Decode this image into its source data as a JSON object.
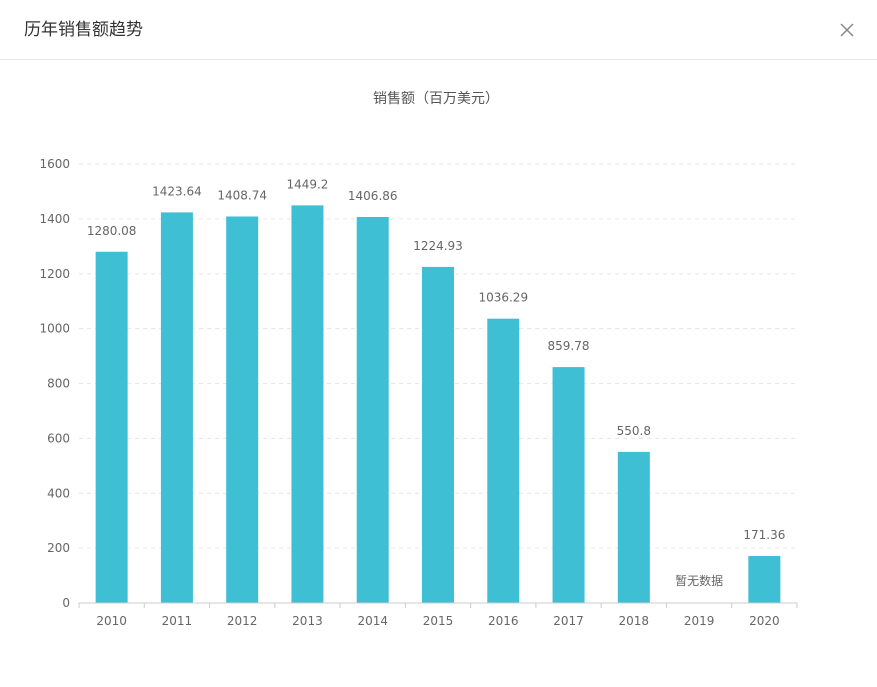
{
  "dialog": {
    "title": "历年销售额趋势"
  },
  "icons": {
    "close": "close-icon"
  },
  "colors": {
    "bar": "#3fbfd4",
    "grid": "#e6e6e6",
    "axis": "#cccccc",
    "label": "#666666"
  },
  "chart_data": {
    "type": "bar",
    "title": "销售额（百万美元）",
    "categories": [
      "2010",
      "2011",
      "2012",
      "2013",
      "2014",
      "2015",
      "2016",
      "2017",
      "2018",
      "2019",
      "2020"
    ],
    "values": [
      1280.08,
      1423.64,
      1408.74,
      1449.2,
      1406.86,
      1224.93,
      1036.29,
      859.78,
      550.8,
      null,
      171.36
    ],
    "value_labels": [
      "1280.08",
      "1423.64",
      "1408.74",
      "1449.2",
      "1406.86",
      "1224.93",
      "1036.29",
      "859.78",
      "550.8",
      "暂无数据",
      "171.36"
    ],
    "ylim": [
      0,
      1600
    ],
    "yticks": [
      "0",
      "200",
      "400",
      "600",
      "800",
      "1000",
      "1200",
      "1400",
      "1600"
    ],
    "grid": true,
    "legend": "none"
  }
}
